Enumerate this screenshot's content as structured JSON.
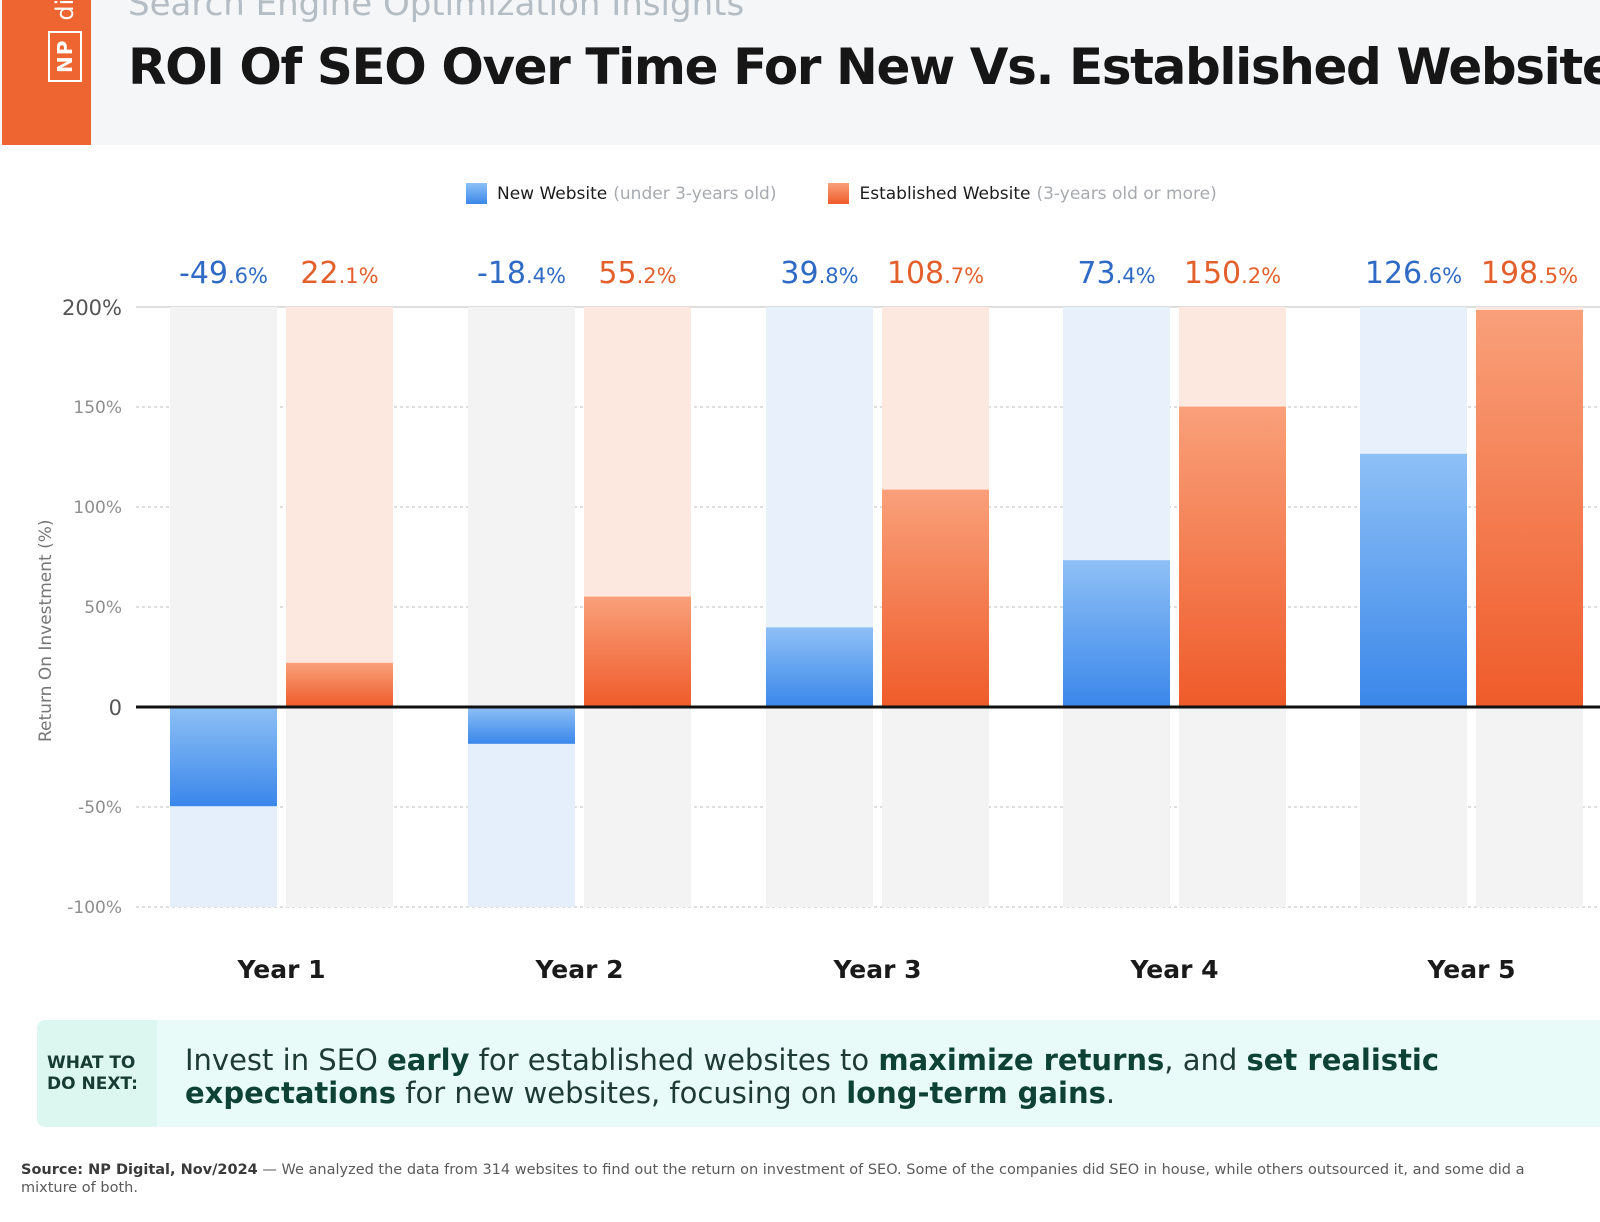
{
  "header": {
    "brand_text": "NP",
    "brand_suffix": "digi",
    "subtitle": "Search Engine Optimization Insights",
    "title": "ROI Of SEO Over Time For New Vs. Established Websites"
  },
  "legend": {
    "new_label": "New Website",
    "new_sub": "(under 3-years old)",
    "est_label": "Established Website",
    "est_sub": "(3-years old or more)"
  },
  "colors": {
    "new_bar": "#3a87ea",
    "new_bar_light": "#8ec0f6",
    "est_bar": "#ef5b2a",
    "est_bar_light": "#f9a07a",
    "new_text": "#2f6bc4",
    "est_text": "#e3602d",
    "brand": "#ef6531"
  },
  "chart_data": {
    "type": "bar",
    "categories": [
      "Year 1",
      "Year 2",
      "Year 3",
      "Year 4",
      "Year 5"
    ],
    "series": [
      {
        "name": "New Website",
        "values": [
          -49.6,
          -18.4,
          39.8,
          73.4,
          126.6
        ],
        "labels": [
          [
            "-49",
            ".6%"
          ],
          [
            "-18",
            ".4%"
          ],
          [
            "39",
            ".8%"
          ],
          [
            "73",
            ".4%"
          ],
          [
            "126",
            ".6%"
          ]
        ]
      },
      {
        "name": "Established Website",
        "values": [
          22.1,
          55.2,
          108.7,
          150.2,
          198.5
        ],
        "labels": [
          [
            "22",
            ".1%"
          ],
          [
            "55",
            ".2%"
          ],
          [
            "108",
            ".7%"
          ],
          [
            "150",
            ".2%"
          ],
          [
            "198",
            ".5%"
          ]
        ]
      }
    ],
    "yticks": [
      200,
      150,
      100,
      50,
      0,
      -50,
      -100
    ],
    "ytick_labels": [
      "200%",
      "150%",
      "100%",
      "50%",
      "0",
      "-50%",
      "-100%"
    ],
    "ylabel": "Return On Investment (%)",
    "ylim": [
      -100,
      200
    ],
    "grid": true
  },
  "callout": {
    "tag": "WHAT TO DO NEXT:",
    "t1": "Invest in SEO ",
    "b1": "early",
    "t2": " for established websites to ",
    "b2": "maximize returns",
    "t3": ", and ",
    "b3": "set realistic expectations",
    "t4": " for new websites, focusing on ",
    "b4": "long-term gains",
    "t5": "."
  },
  "source": {
    "label": "Source:",
    "org": " NP Digital, Nov/2024",
    "text": " — We analyzed the data from 314 websites to find out the return on investment of SEO. Some of the companies did SEO in house, while others outsourced it, and some did a mixture of both."
  }
}
